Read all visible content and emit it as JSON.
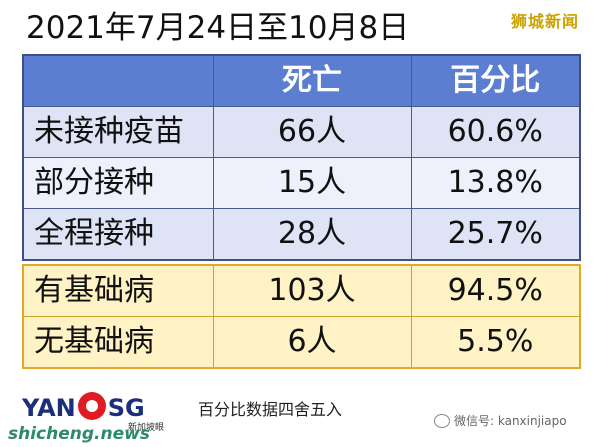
{
  "title": "2021年7月24日至10月8日",
  "watermark": "狮城新闻",
  "chart_data": {
    "type": "table",
    "columns": [
      "",
      "死亡",
      "百分比"
    ],
    "rows_group1": [
      {
        "label": "未接种疫苗",
        "deaths": "66人",
        "percent": "60.6%"
      },
      {
        "label": "部分接种",
        "deaths": "15人",
        "percent": "13.8%"
      },
      {
        "label": "全程接种",
        "deaths": "28人",
        "percent": "25.7%"
      }
    ],
    "rows_group2": [
      {
        "label": "有基础病",
        "deaths": "103人",
        "percent": "94.5%"
      },
      {
        "label": "无基础病",
        "deaths": "6人",
        "percent": "5.5%"
      }
    ],
    "colors": {
      "header": "#5b7ed0",
      "group1": "#dfe3f6",
      "group2": "#fff2c4"
    }
  },
  "footer": {
    "logo_text_left": "YAN",
    "logo_text_right": "SG",
    "logo_sub": "新加坡眼",
    "note": "百分比数据四舍五入",
    "wechat": "微信号: kanxinjiapo",
    "site": "shicheng.news"
  }
}
